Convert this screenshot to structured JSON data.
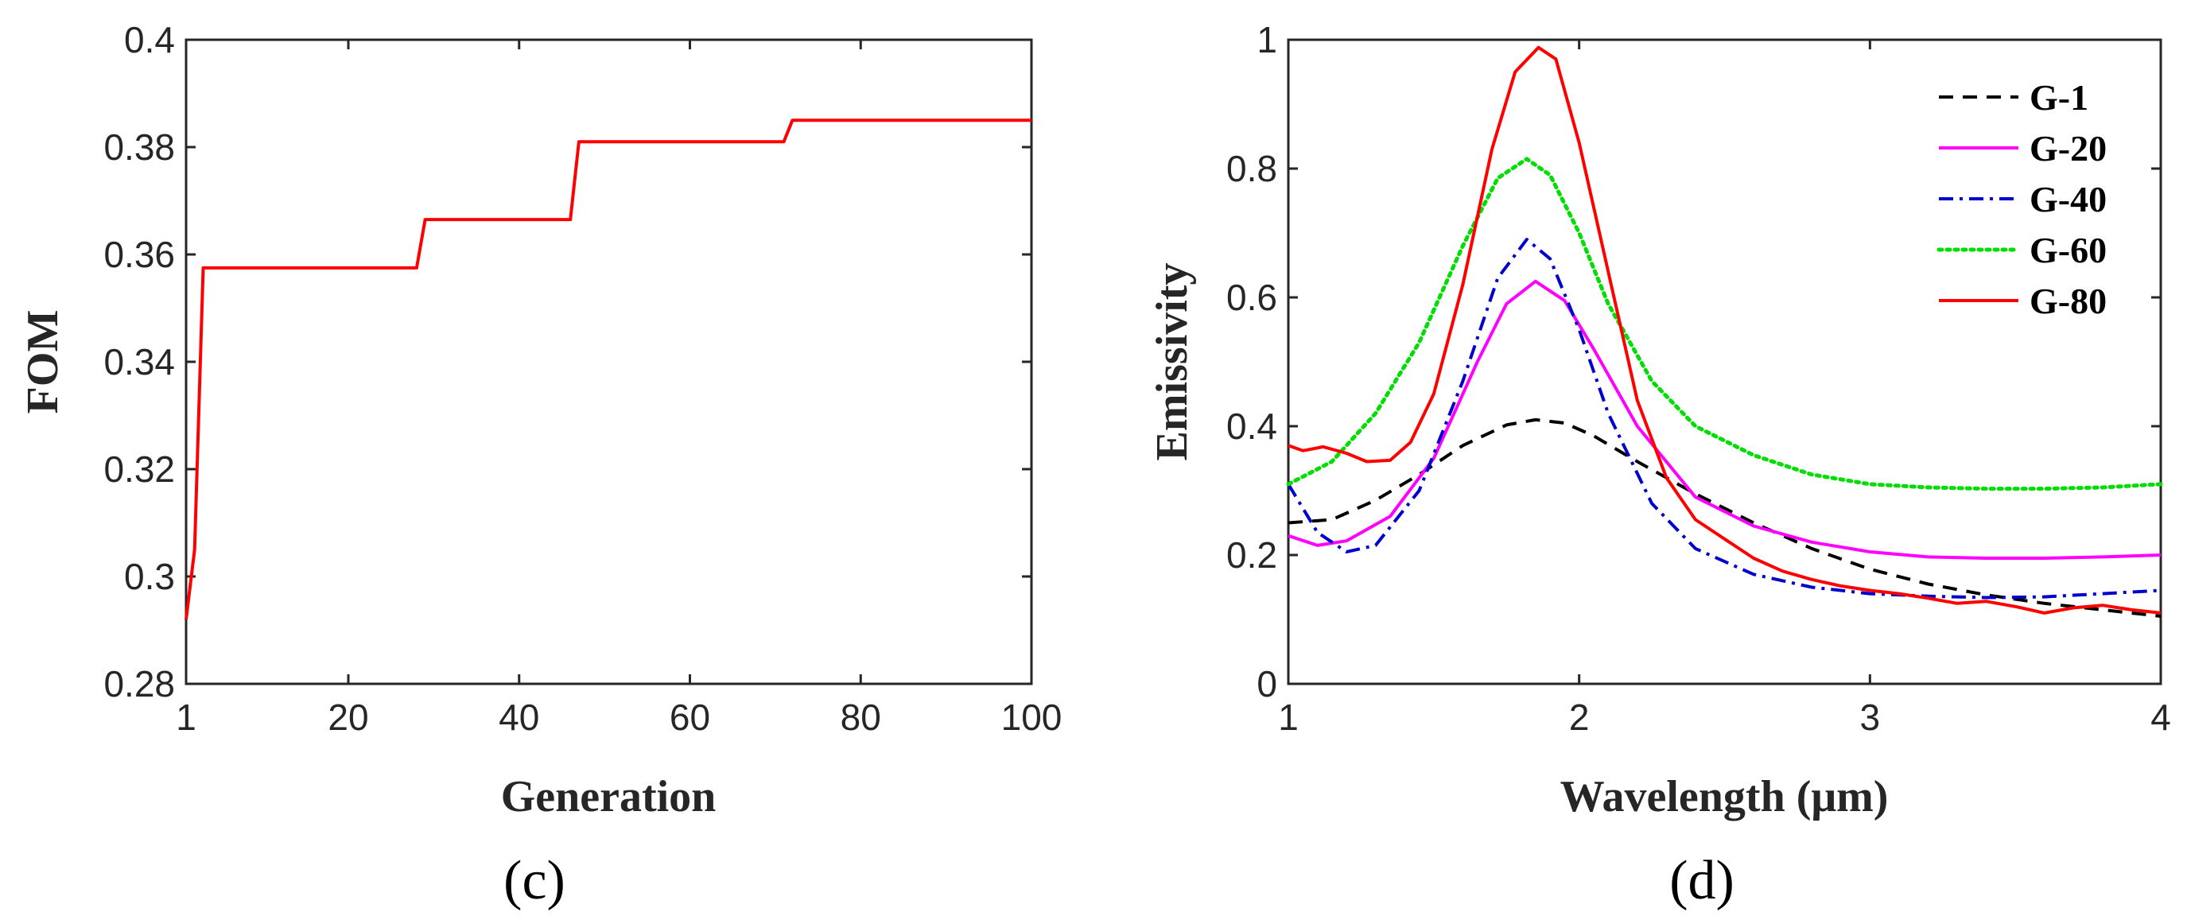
{
  "chart_data": [
    {
      "type": "line",
      "panel_label": "(c)",
      "title": "",
      "xlabel": "Generation",
      "ylabel": "FOM",
      "xlim": [
        1,
        100
      ],
      "ylim": [
        0.28,
        0.4
      ],
      "xticks": [
        1,
        20,
        40,
        60,
        80,
        100
      ],
      "xtick_labels": [
        "1",
        "20",
        "40",
        "60",
        "80",
        "100"
      ],
      "yticks": [
        0.28,
        0.3,
        0.32,
        0.34,
        0.36,
        0.38,
        0.4
      ],
      "ytick_labels": [
        "0.28",
        "0.3",
        "0.32",
        "0.34",
        "0.36",
        "0.38",
        "0.4"
      ],
      "grid": false,
      "series": [
        {
          "name": "FOM",
          "color": "#ff0000",
          "x": [
            1,
            2,
            3,
            28,
            29,
            46,
            47,
            71,
            72,
            100
          ],
          "y": [
            0.292,
            0.305,
            0.3575,
            0.3575,
            0.3665,
            0.3665,
            0.381,
            0.381,
            0.385,
            0.385
          ]
        }
      ]
    },
    {
      "type": "line",
      "panel_label": "(d)",
      "title": "",
      "xlabel": "Wavelength (μm)",
      "ylabel": "Emissivity",
      "xlim": [
        1,
        4
      ],
      "ylim": [
        0,
        1
      ],
      "xticks": [
        1,
        2,
        3,
        4
      ],
      "xtick_labels": [
        "1",
        "2",
        "3",
        "4"
      ],
      "yticks": [
        0,
        0.2,
        0.4,
        0.6,
        0.8,
        1
      ],
      "ytick_labels": [
        "0",
        "0.2",
        "0.4",
        "0.6",
        "0.8",
        "1"
      ],
      "grid": false,
      "legend": {
        "position": "top-right",
        "boxed": false
      },
      "series": [
        {
          "name": "G-1",
          "color": "#000000",
          "dash": "dashed",
          "x": [
            1,
            1.15,
            1.3,
            1.45,
            1.6,
            1.75,
            1.85,
            1.95,
            2.05,
            2.2,
            2.4,
            2.6,
            2.8,
            3.0,
            3.2,
            3.4,
            3.6,
            3.8,
            4.0
          ],
          "y": [
            0.25,
            0.255,
            0.285,
            0.325,
            0.37,
            0.402,
            0.41,
            0.405,
            0.385,
            0.345,
            0.295,
            0.25,
            0.21,
            0.178,
            0.155,
            0.138,
            0.125,
            0.115,
            0.105
          ]
        },
        {
          "name": "G-20",
          "color": "#ff00ff",
          "dash": "solid",
          "x": [
            1,
            1.1,
            1.2,
            1.35,
            1.5,
            1.65,
            1.75,
            1.85,
            1.95,
            2.05,
            2.2,
            2.4,
            2.6,
            2.8,
            3.0,
            3.2,
            3.4,
            3.6,
            3.8,
            4.0
          ],
          "y": [
            0.23,
            0.215,
            0.222,
            0.26,
            0.35,
            0.5,
            0.59,
            0.625,
            0.595,
            0.52,
            0.4,
            0.29,
            0.245,
            0.22,
            0.205,
            0.197,
            0.195,
            0.195,
            0.197,
            0.2
          ]
        },
        {
          "name": "G-40",
          "color": "#0000cc",
          "dash": "dashdot",
          "x": [
            1,
            1.1,
            1.2,
            1.3,
            1.45,
            1.6,
            1.72,
            1.82,
            1.9,
            2.0,
            2.1,
            2.25,
            2.4,
            2.6,
            2.8,
            3.0,
            3.2,
            3.4,
            3.6,
            3.8,
            4.0
          ],
          "y": [
            0.31,
            0.235,
            0.205,
            0.215,
            0.3,
            0.47,
            0.63,
            0.69,
            0.66,
            0.55,
            0.42,
            0.28,
            0.21,
            0.17,
            0.15,
            0.14,
            0.136,
            0.134,
            0.135,
            0.14,
            0.145
          ]
        },
        {
          "name": "G-60",
          "color": "#00dd00",
          "dash": "dotted",
          "x": [
            1,
            1.15,
            1.3,
            1.45,
            1.6,
            1.72,
            1.82,
            1.9,
            2.0,
            2.1,
            2.25,
            2.4,
            2.6,
            2.8,
            3.0,
            3.2,
            3.4,
            3.6,
            3.8,
            4.0
          ],
          "y": [
            0.31,
            0.345,
            0.42,
            0.53,
            0.68,
            0.785,
            0.815,
            0.79,
            0.7,
            0.59,
            0.47,
            0.4,
            0.355,
            0.325,
            0.31,
            0.305,
            0.303,
            0.303,
            0.305,
            0.31
          ]
        },
        {
          "name": "G-80",
          "color": "#ff0000",
          "dash": "solid",
          "x": [
            1,
            1.05,
            1.12,
            1.2,
            1.27,
            1.35,
            1.42,
            1.5,
            1.6,
            1.7,
            1.78,
            1.86,
            1.92,
            2.0,
            2.1,
            2.2,
            2.3,
            2.4,
            2.5,
            2.6,
            2.7,
            2.8,
            2.9,
            3.0,
            3.1,
            3.2,
            3.3,
            3.4,
            3.5,
            3.6,
            3.7,
            3.8,
            3.9,
            4.0
          ],
          "y": [
            0.37,
            0.362,
            0.368,
            0.358,
            0.345,
            0.347,
            0.375,
            0.45,
            0.62,
            0.83,
            0.95,
            0.988,
            0.97,
            0.84,
            0.64,
            0.44,
            0.32,
            0.255,
            0.225,
            0.195,
            0.175,
            0.162,
            0.152,
            0.145,
            0.14,
            0.133,
            0.125,
            0.128,
            0.12,
            0.11,
            0.118,
            0.122,
            0.115,
            0.11
          ]
        }
      ]
    }
  ]
}
